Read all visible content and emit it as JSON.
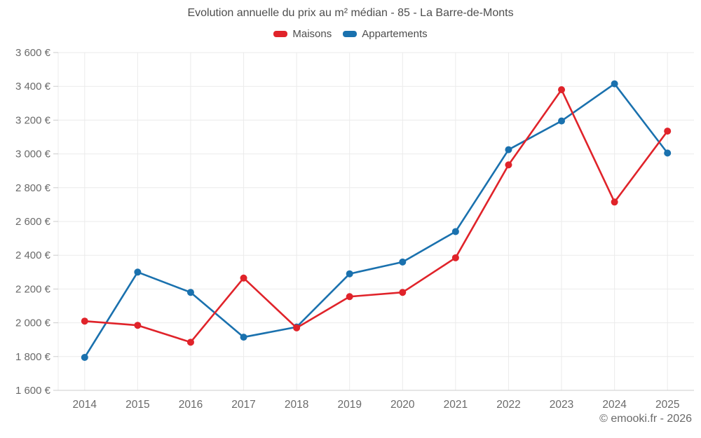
{
  "chart_data": {
    "type": "line",
    "title": "Evolution annuelle du prix au m² médian - 85 - La Barre-de-Monts",
    "attribution": "© emooki.fr - 2026",
    "categories": [
      "2014",
      "2015",
      "2016",
      "2017",
      "2018",
      "2019",
      "2020",
      "2021",
      "2022",
      "2023",
      "2024",
      "2025"
    ],
    "series": [
      {
        "name": "Maisons",
        "color": "#e0232a",
        "values": [
          2010,
          1985,
          1885,
          2265,
          1970,
          2155,
          2180,
          2385,
          2935,
          3380,
          2715,
          3135
        ]
      },
      {
        "name": "Appartements",
        "color": "#1a71ae",
        "values": [
          1795,
          2300,
          2180,
          1915,
          1975,
          2290,
          2360,
          2540,
          3025,
          3195,
          3415,
          3005
        ]
      }
    ],
    "xlabel": "",
    "ylabel": "",
    "ylim": [
      1600,
      3600
    ],
    "yticks": [
      {
        "value": 1600,
        "label": "1 600 €"
      },
      {
        "value": 1800,
        "label": "1 800 €"
      },
      {
        "value": 2000,
        "label": "2 000 €"
      },
      {
        "value": 2200,
        "label": "2 200 €"
      },
      {
        "value": 2400,
        "label": "2 400 €"
      },
      {
        "value": 2600,
        "label": "2 600 €"
      },
      {
        "value": 2800,
        "label": "2 800 €"
      },
      {
        "value": 3000,
        "label": "3 000 €"
      },
      {
        "value": 3200,
        "label": "3 200 €"
      },
      {
        "value": 3400,
        "label": "3 400 €"
      },
      {
        "value": 3600,
        "label": "3 600 €"
      }
    ],
    "grid": true,
    "legend_position": "top",
    "colors": {
      "background": "#ffffff",
      "grid": "#ebebeb",
      "axis": "#cccccc",
      "tick_text": "#6a6a6a",
      "title_text": "#4d4d4d"
    }
  }
}
